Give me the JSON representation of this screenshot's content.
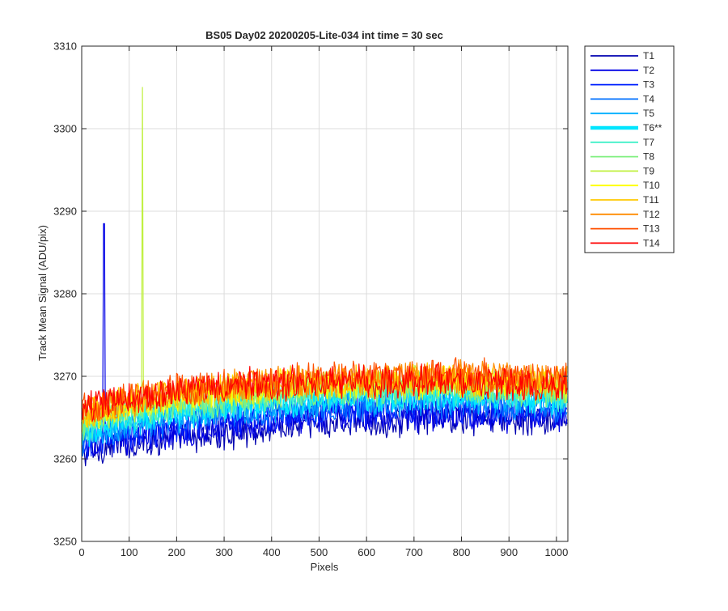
{
  "chart_data": {
    "type": "line",
    "title": "BS05 Day02 20200205-Lite-034 int time = 30 sec",
    "xlabel": "Pixels",
    "ylabel": "Track Mean Signal (ADU/pix)",
    "xlim": [
      0,
      1024
    ],
    "ylim": [
      3250,
      3310
    ],
    "xticks": [
      0,
      100,
      200,
      300,
      400,
      500,
      600,
      700,
      800,
      900,
      1000
    ],
    "yticks": [
      3250,
      3260,
      3270,
      3280,
      3290,
      3300,
      3310
    ],
    "grid": true,
    "legend_position": "outside-top-right",
    "x": [
      0,
      50,
      100,
      150,
      200,
      250,
      300,
      350,
      400,
      450,
      500,
      550,
      600,
      650,
      700,
      750,
      800,
      850,
      900,
      950,
      1000,
      1020
    ],
    "series": [
      {
        "name": "T1",
        "color": "#0000b0",
        "values": [
          3260.5,
          3261.5,
          3262.0,
          3262.3,
          3262.6,
          3262.8,
          3263.0,
          3263.4,
          3263.8,
          3264.0,
          3264.2,
          3264.4,
          3264.6,
          3264.7,
          3264.8,
          3264.9,
          3264.9,
          3264.9,
          3264.8,
          3264.7,
          3264.6,
          3264.5
        ]
      },
      {
        "name": "T2",
        "color": "#0000e6",
        "values": [
          3261.0,
          3262.0,
          3262.6,
          3263.0,
          3263.4,
          3263.7,
          3264.0,
          3264.3,
          3264.6,
          3264.8,
          3265.0,
          3265.1,
          3265.2,
          3265.3,
          3265.4,
          3265.4,
          3265.4,
          3265.3,
          3265.2,
          3265.1,
          3265.0,
          3265.0
        ]
      },
      {
        "name": "T3",
        "color": "#0020ff",
        "values": [
          3261.5,
          3262.6,
          3263.2,
          3263.7,
          3264.1,
          3264.4,
          3264.7,
          3265.0,
          3265.3,
          3265.5,
          3265.7,
          3265.8,
          3265.9,
          3266.0,
          3266.1,
          3266.1,
          3266.1,
          3266.0,
          3265.9,
          3265.8,
          3265.7,
          3265.6
        ]
      },
      {
        "name": "T4",
        "color": "#0070ff",
        "values": [
          3262.0,
          3263.2,
          3263.9,
          3264.4,
          3264.8,
          3265.1,
          3265.4,
          3265.7,
          3266.0,
          3266.2,
          3266.4,
          3266.5,
          3266.6,
          3266.7,
          3266.8,
          3266.8,
          3266.8,
          3266.7,
          3266.6,
          3266.5,
          3266.4,
          3266.3
        ]
      },
      {
        "name": "T5",
        "color": "#00b0ff",
        "values": [
          3262.5,
          3263.7,
          3264.4,
          3264.9,
          3265.3,
          3265.6,
          3265.9,
          3266.2,
          3266.5,
          3266.7,
          3266.9,
          3267.0,
          3267.1,
          3267.2,
          3267.3,
          3267.3,
          3267.3,
          3267.2,
          3267.1,
          3267.0,
          3266.9,
          3266.8
        ]
      },
      {
        "name": "T6**",
        "color": "#00e6ff",
        "values": [
          3263.0,
          3264.2,
          3264.9,
          3265.4,
          3265.8,
          3266.1,
          3266.4,
          3266.7,
          3267.0,
          3267.2,
          3267.4,
          3267.5,
          3267.6,
          3267.7,
          3267.8,
          3267.8,
          3267.8,
          3267.7,
          3267.6,
          3267.5,
          3267.4,
          3267.3
        ]
      },
      {
        "name": "T7",
        "color": "#40f0c8",
        "values": [
          3263.5,
          3264.7,
          3265.4,
          3265.9,
          3266.3,
          3266.6,
          3266.9,
          3267.2,
          3267.5,
          3267.7,
          3267.9,
          3268.0,
          3268.1,
          3268.2,
          3268.3,
          3268.3,
          3268.3,
          3268.2,
          3268.1,
          3268.0,
          3267.9,
          3267.8
        ]
      },
      {
        "name": "T8",
        "color": "#80f080",
        "values": [
          3264.0,
          3265.1,
          3265.8,
          3266.3,
          3266.7,
          3267.0,
          3267.3,
          3267.6,
          3267.9,
          3268.1,
          3268.3,
          3268.4,
          3268.5,
          3268.6,
          3268.7,
          3268.7,
          3268.7,
          3268.6,
          3268.5,
          3268.4,
          3268.3,
          3268.2
        ]
      },
      {
        "name": "T9",
        "color": "#c0f040",
        "values": [
          3264.5,
          3265.6,
          3266.3,
          3266.8,
          3267.2,
          3267.5,
          3267.8,
          3268.1,
          3268.4,
          3268.6,
          3268.8,
          3268.9,
          3269.0,
          3269.1,
          3269.2,
          3269.2,
          3269.2,
          3269.1,
          3269.0,
          3268.9,
          3268.8,
          3268.7
        ]
      },
      {
        "name": "T10",
        "color": "#ffff00",
        "values": [
          3265.0,
          3266.0,
          3266.6,
          3267.1,
          3267.5,
          3267.8,
          3268.1,
          3268.4,
          3268.7,
          3268.9,
          3269.0,
          3269.1,
          3269.2,
          3269.3,
          3269.4,
          3269.4,
          3269.4,
          3269.3,
          3269.2,
          3269.1,
          3269.0,
          3268.9
        ]
      },
      {
        "name": "T11",
        "color": "#ffc800",
        "values": [
          3265.3,
          3266.3,
          3266.9,
          3267.4,
          3267.8,
          3268.1,
          3268.4,
          3268.7,
          3269.0,
          3269.2,
          3269.3,
          3269.4,
          3269.5,
          3269.6,
          3269.7,
          3269.7,
          3269.7,
          3269.6,
          3269.5,
          3269.4,
          3269.3,
          3269.2
        ]
      },
      {
        "name": "T12",
        "color": "#ff8c00",
        "values": [
          3265.5,
          3266.5,
          3267.1,
          3267.6,
          3268.0,
          3268.3,
          3268.6,
          3268.9,
          3269.2,
          3269.4,
          3269.5,
          3269.6,
          3269.7,
          3269.8,
          3269.9,
          3269.9,
          3269.9,
          3269.8,
          3269.7,
          3269.6,
          3269.5,
          3269.4
        ]
      },
      {
        "name": "T13",
        "color": "#ff5000",
        "values": [
          3265.7,
          3266.7,
          3267.3,
          3267.8,
          3268.2,
          3268.5,
          3268.8,
          3269.1,
          3269.4,
          3269.6,
          3269.7,
          3269.8,
          3269.9,
          3270.0,
          3270.1,
          3270.1,
          3270.1,
          3270.0,
          3269.9,
          3269.8,
          3269.7,
          3269.6
        ]
      },
      {
        "name": "T14",
        "color": "#ff0000",
        "values": [
          3265.9,
          3266.8,
          3267.4,
          3267.8,
          3268.2,
          3268.5,
          3268.7,
          3268.9,
          3269.1,
          3269.2,
          3269.3,
          3269.3,
          3269.4,
          3269.4,
          3269.4,
          3269.4,
          3269.3,
          3269.2,
          3269.0,
          3268.9,
          3268.8,
          3268.7
        ]
      }
    ],
    "annotations": [
      {
        "series": "T2",
        "x": 47,
        "y": 3288.5,
        "note": "spike"
      },
      {
        "series": "T9",
        "x": 128,
        "y": 3305,
        "note": "spike"
      }
    ]
  }
}
